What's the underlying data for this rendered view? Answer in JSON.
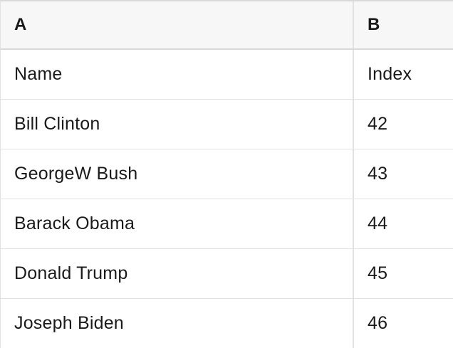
{
  "table": {
    "columns": [
      {
        "label": "A"
      },
      {
        "label": "B"
      }
    ],
    "rows": [
      {
        "a": "Name",
        "b": "Index"
      },
      {
        "a": "Bill Clinton",
        "b": "42"
      },
      {
        "a": "GeorgeW Bush",
        "b": "43"
      },
      {
        "a": "Barack Obama",
        "b": "44"
      },
      {
        "a": "Donald Trump",
        "b": "45"
      },
      {
        "a": "Joseph Biden",
        "b": "46"
      }
    ]
  },
  "colors": {
    "header_bg": "#f7f7f7",
    "cell_bg": "#ffffff",
    "outer_border": "#d9d9d9",
    "inner_border": "#e2e2e2",
    "text": "#1a1a1a"
  }
}
